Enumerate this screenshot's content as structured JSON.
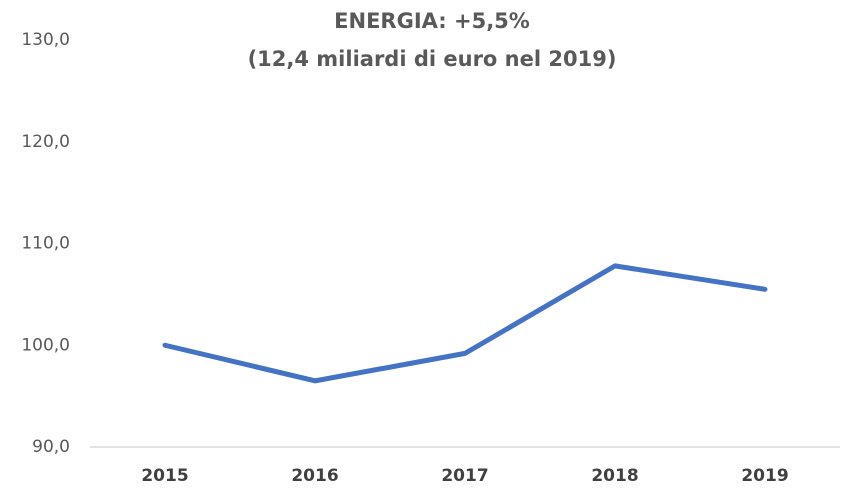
{
  "chart_data": {
    "type": "line",
    "title": "ENERGIA: +5,5%",
    "subtitle": "(12,4 miliardi di euro nel 2019)",
    "categories": [
      "2015",
      "2016",
      "2017",
      "2018",
      "2019"
    ],
    "series": [
      {
        "name": "Energia",
        "color": "#4472c4",
        "values": [
          100.0,
          96.5,
          99.2,
          107.8,
          105.5
        ]
      }
    ],
    "ylim": [
      90,
      130
    ],
    "yticks": [
      {
        "value": 90,
        "label": "90,0"
      },
      {
        "value": 100,
        "label": "100,0"
      },
      {
        "value": 110,
        "label": "110,0"
      },
      {
        "value": 120,
        "label": "120,0"
      },
      {
        "value": 130,
        "label": "130,0"
      }
    ],
    "grid": false,
    "legend": false
  }
}
